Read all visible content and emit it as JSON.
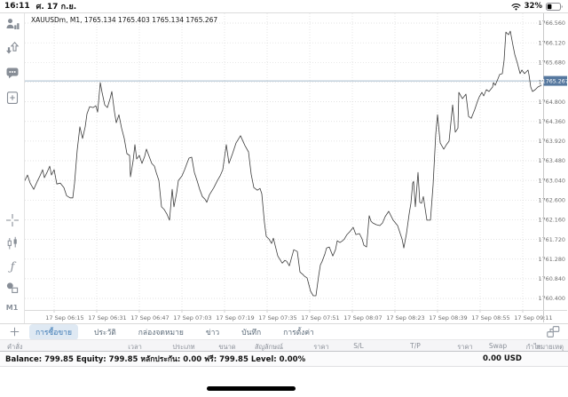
{
  "status_bar": {
    "time": "16:11",
    "date": "ศ. 17 ก.ย.",
    "battery_percent": "32%",
    "icons": [
      "wifi-icon",
      "battery-icon"
    ]
  },
  "sidebar": {
    "icons": [
      "accounts-icon",
      "trade-updown-icon",
      "chat-icon",
      "new-order-icon",
      "crosshair-icon",
      "candlestick-chart-icon",
      "indicator-function-icon",
      "objects-icon"
    ],
    "timeframe_label": "M1"
  },
  "chart_data": {
    "type": "line",
    "title": "XAUUSDm, M1, 1765.134 1765.403 1765.134 1765.267",
    "symbol": "XAUUSDm",
    "timeframe": "M1",
    "ohlc": {
      "open": "1765.134",
      "high": "1765.403",
      "low": "1765.134",
      "close": "1765.267"
    },
    "current_price": 1765.267,
    "current_price_label": "1765.267",
    "ylim": [
      1760.142,
      1766.779
    ],
    "grid": true,
    "y_ticks": [
      "1766.560",
      "1766.120",
      "1765.680",
      "1765.240",
      "1764.800",
      "1764.360",
      "1763.920",
      "1763.480",
      "1763.040",
      "1762.600",
      "1762.160",
      "1761.720",
      "1761.280",
      "1760.840",
      "1760.400"
    ],
    "x_ticks": [
      "17 Sep 06:15",
      "17 Sep 06:31",
      "17 Sep 06:47",
      "17 Sep 07:03",
      "17 Sep 07:19",
      "17 Sep 07:35",
      "17 Sep 07:51",
      "17 Sep 08:07",
      "17 Sep 08:23",
      "17 Sep 08:39",
      "17 Sep 08:55",
      "17 Sep 09:11"
    ],
    "series": [
      {
        "name": "XAUUSDm close",
        "points": [
          [
            0,
            1763.04
          ],
          [
            3,
            1763.16
          ],
          [
            6,
            1762.98
          ],
          [
            10,
            1762.84
          ],
          [
            14,
            1763.02
          ],
          [
            17,
            1763.14
          ],
          [
            20,
            1763.28
          ],
          [
            22,
            1763.1
          ],
          [
            25,
            1763.22
          ],
          [
            28,
            1763.36
          ],
          [
            30,
            1763.16
          ],
          [
            33,
            1763.28
          ],
          [
            36,
            1762.96
          ],
          [
            40,
            1762.98
          ],
          [
            44,
            1762.88
          ],
          [
            47,
            1762.7
          ],
          [
            51,
            1762.65
          ],
          [
            54,
            1762.65
          ],
          [
            56,
            1762.98
          ],
          [
            59,
            1763.72
          ],
          [
            62,
            1764.24
          ],
          [
            65,
            1763.98
          ],
          [
            68,
            1764.24
          ],
          [
            70,
            1764.53
          ],
          [
            73,
            1764.69
          ],
          [
            77,
            1764.67
          ],
          [
            80,
            1764.71
          ],
          [
            82,
            1764.57
          ],
          [
            85,
            1765.23
          ],
          [
            87,
            1765.01
          ],
          [
            90,
            1764.73
          ],
          [
            93,
            1764.67
          ],
          [
            96,
            1764.87
          ],
          [
            98,
            1765.03
          ],
          [
            101,
            1764.57
          ],
          [
            103,
            1764.33
          ],
          [
            106,
            1764.51
          ],
          [
            109,
            1764.21
          ],
          [
            112,
            1763.98
          ],
          [
            115,
            1763.64
          ],
          [
            118,
            1763.6
          ],
          [
            119,
            1763.12
          ],
          [
            122,
            1763.48
          ],
          [
            124,
            1763.84
          ],
          [
            126,
            1763.52
          ],
          [
            129,
            1763.6
          ],
          [
            132,
            1763.42
          ],
          [
            135,
            1763.58
          ],
          [
            137,
            1763.74
          ],
          [
            140,
            1763.58
          ],
          [
            143,
            1763.42
          ],
          [
            146,
            1763.36
          ],
          [
            148,
            1763.22
          ],
          [
            151,
            1763.04
          ],
          [
            154,
            1762.45
          ],
          [
            157,
            1762.39
          ],
          [
            160,
            1762.29
          ],
          [
            163,
            1762.15
          ],
          [
            166,
            1762.84
          ],
          [
            168,
            1762.45
          ],
          [
            171,
            1762.76
          ],
          [
            173,
            1763.04
          ],
          [
            177,
            1763.14
          ],
          [
            180,
            1763.28
          ],
          [
            183,
            1763.44
          ],
          [
            185,
            1763.54
          ],
          [
            188,
            1763.56
          ],
          [
            191,
            1763.22
          ],
          [
            194,
            1763.04
          ],
          [
            197,
            1762.84
          ],
          [
            200,
            1762.68
          ],
          [
            203,
            1762.62
          ],
          [
            205,
            1762.55
          ],
          [
            208,
            1762.72
          ],
          [
            213,
            1762.88
          ],
          [
            217,
            1763.04
          ],
          [
            220,
            1763.14
          ],
          [
            223,
            1763.28
          ],
          [
            227,
            1763.84
          ],
          [
            230,
            1763.42
          ],
          [
            234,
            1763.64
          ],
          [
            238,
            1763.88
          ],
          [
            243,
            1764.04
          ],
          [
            248,
            1763.82
          ],
          [
            252,
            1763.68
          ],
          [
            255,
            1763.18
          ],
          [
            258,
            1762.88
          ],
          [
            262,
            1762.82
          ],
          [
            265,
            1762.86
          ],
          [
            267,
            1762.74
          ],
          [
            270,
            1762.09
          ],
          [
            272,
            1761.79
          ],
          [
            275,
            1761.73
          ],
          [
            278,
            1761.63
          ],
          [
            280,
            1761.75
          ],
          [
            285,
            1761.35
          ],
          [
            290,
            1761.19
          ],
          [
            293,
            1761.25
          ],
          [
            295,
            1761.23
          ],
          [
            298,
            1761.13
          ],
          [
            303,
            1761.49
          ],
          [
            307,
            1761.45
          ],
          [
            310,
            1760.99
          ],
          [
            313,
            1760.94
          ],
          [
            315,
            1760.9
          ],
          [
            318,
            1760.86
          ],
          [
            322,
            1760.56
          ],
          [
            325,
            1760.46
          ],
          [
            328,
            1760.46
          ],
          [
            331,
            1760.9
          ],
          [
            333,
            1761.15
          ],
          [
            335,
            1761.23
          ],
          [
            338,
            1761.39
          ],
          [
            340,
            1761.53
          ],
          [
            343,
            1761.55
          ],
          [
            347,
            1761.35
          ],
          [
            350,
            1761.49
          ],
          [
            352,
            1761.69
          ],
          [
            355,
            1761.65
          ],
          [
            358,
            1761.69
          ],
          [
            360,
            1761.73
          ],
          [
            363,
            1761.83
          ],
          [
            366,
            1761.89
          ],
          [
            370,
            1761.99
          ],
          [
            373,
            1761.83
          ],
          [
            377,
            1761.85
          ],
          [
            380,
            1761.73
          ],
          [
            382,
            1761.59
          ],
          [
            385,
            1761.55
          ],
          [
            388,
            1762.25
          ],
          [
            390,
            1762.13
          ],
          [
            392,
            1762.09
          ],
          [
            396,
            1762.05
          ],
          [
            400,
            1762.03
          ],
          [
            403,
            1762.09
          ],
          [
            406,
            1762.23
          ],
          [
            410,
            1762.35
          ],
          [
            415,
            1762.15
          ],
          [
            420,
            1762.03
          ],
          [
            425,
            1761.73
          ],
          [
            427,
            1761.53
          ],
          [
            430,
            1761.85
          ],
          [
            433,
            1762.29
          ],
          [
            435,
            1762.53
          ],
          [
            437,
            1762.98
          ],
          [
            438,
            1763.02
          ],
          [
            440,
            1762.45
          ],
          [
            443,
            1763.22
          ],
          [
            445,
            1762.55
          ],
          [
            447,
            1762.53
          ],
          [
            449,
            1762.68
          ],
          [
            453,
            1762.15
          ],
          [
            457,
            1762.15
          ],
          [
            460,
            1762.94
          ],
          [
            463,
            1764.08
          ],
          [
            465,
            1764.51
          ],
          [
            468,
            1763.88
          ],
          [
            472,
            1763.74
          ],
          [
            475,
            1763.84
          ],
          [
            478,
            1763.92
          ],
          [
            482,
            1764.73
          ],
          [
            485,
            1764.12
          ],
          [
            488,
            1764.21
          ],
          [
            489,
            1765.01
          ],
          [
            493,
            1764.87
          ],
          [
            497,
            1764.97
          ],
          [
            500,
            1764.47
          ],
          [
            503,
            1764.43
          ],
          [
            507,
            1764.63
          ],
          [
            510,
            1764.81
          ],
          [
            512,
            1764.91
          ],
          [
            515,
            1765.01
          ],
          [
            517,
            1764.93
          ],
          [
            520,
            1765.07
          ],
          [
            523,
            1765.03
          ],
          [
            527,
            1765.13
          ],
          [
            528,
            1765.23
          ],
          [
            530,
            1765.17
          ],
          [
            533,
            1765.31
          ],
          [
            535,
            1765.41
          ],
          [
            538,
            1765.43
          ],
          [
            540,
            1765.73
          ],
          [
            542,
            1766.36
          ],
          [
            545,
            1766.3
          ],
          [
            547,
            1766.38
          ],
          [
            550,
            1766.06
          ],
          [
            552,
            1765.86
          ],
          [
            555,
            1765.66
          ],
          [
            558,
            1765.43
          ],
          [
            560,
            1765.51
          ],
          [
            563,
            1765.43
          ],
          [
            565,
            1765.47
          ],
          [
            567,
            1765.51
          ],
          [
            568,
            1765.41
          ],
          [
            570,
            1765.13
          ],
          [
            572,
            1765.03
          ],
          [
            575,
            1765.07
          ],
          [
            578,
            1765.13
          ],
          [
            582,
            1765.17
          ]
        ]
      }
    ]
  },
  "bottom_panel": {
    "add_tab_icon": "plus-icon",
    "tabs": [
      {
        "label": "การซื้อขาย",
        "selected": true
      },
      {
        "label": "ประวัติ",
        "selected": false
      },
      {
        "label": "กล่องจดหมาย",
        "selected": false
      },
      {
        "label": "ข่าว",
        "selected": false
      },
      {
        "label": "บันทึก",
        "selected": false
      },
      {
        "label": "การตั้งค่า",
        "selected": false
      }
    ],
    "window_layout_icon": "windows-icon",
    "table_columns": [
      "คำสั่ง",
      "เวลา",
      "ประเภท",
      "ขนาด",
      "สัญลักษณ์",
      "ราคา",
      "S/L",
      "T/P",
      "ราคา",
      "Swap",
      "กำไร",
      "หมายเหตุ"
    ],
    "account": {
      "summary_parts": [
        "Balance: 799.85",
        "Equity: 799.85",
        "หลักประกัน: 0.00",
        "ฟรี: 799.85",
        "Level: 0.00%"
      ],
      "profit_value": "0.00",
      "profit_currency": "USD"
    }
  },
  "colors": {
    "price_tag_blue": "#56789f",
    "price_line": "#a8bccd",
    "series_line": "#3c3c3c",
    "grid": "#d9d9d9",
    "icon_gray": "#878d96",
    "tab_selected_bg": "#dfe9f3",
    "tab_selected_text": "#3d7ab5"
  }
}
